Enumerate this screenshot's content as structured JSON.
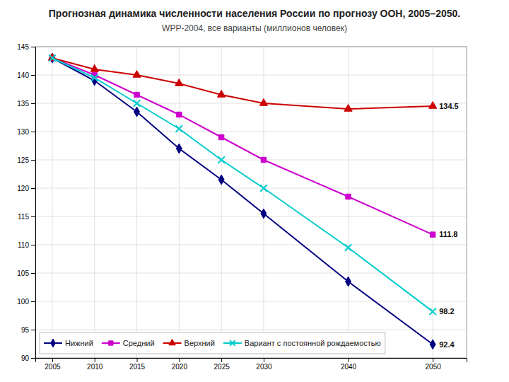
{
  "chart_data": {
    "type": "line",
    "title": "Прогнозная динамика численности населения России по прогнозу ООН, 2005–2050.",
    "subtitle": "WPP-2004, все варианты (миллионов человек)",
    "x": [
      2005,
      2010,
      2015,
      2020,
      2025,
      2030,
      2040,
      2050
    ],
    "series": [
      {
        "name": "Нижний",
        "color": "#000080",
        "marker": "diamond",
        "values": [
          143.0,
          139.0,
          133.5,
          127.0,
          121.5,
          115.5,
          103.5,
          92.4
        ]
      },
      {
        "name": "Средний",
        "color": "#CC00CC",
        "marker": "square",
        "values": [
          143.0,
          140.0,
          136.5,
          133.0,
          129.0,
          125.0,
          118.5,
          111.8
        ]
      },
      {
        "name": "Верхний",
        "color": "#CC0000",
        "marker": "triangle",
        "values": [
          143.0,
          141.0,
          140.0,
          138.5,
          136.5,
          135.0,
          134.0,
          134.5
        ]
      },
      {
        "name": "Вариант с постоянной рождаемостью",
        "color": "#00CCCC",
        "marker": "x",
        "values": [
          143.0,
          139.5,
          135.0,
          130.5,
          125.0,
          120.0,
          109.5,
          98.2
        ]
      }
    ],
    "annotations": [
      {
        "text": "134.5",
        "x": 2050,
        "y": 134.5
      },
      {
        "text": "111.8",
        "x": 2050,
        "y": 111.8
      },
      {
        "text": "98.2",
        "x": 2050,
        "y": 98.2
      },
      {
        "text": "92.4",
        "x": 2050,
        "y": 92.4
      }
    ],
    "xlim": [
      2003,
      2054
    ],
    "xticks": [
      2005,
      2010,
      2015,
      2020,
      2025,
      2030,
      2040,
      2050
    ],
    "ylim": [
      90,
      145
    ],
    "yticks": [
      90,
      95,
      100,
      105,
      110,
      115,
      120,
      125,
      130,
      135,
      140,
      145
    ],
    "grid": true,
    "legend": "lower left"
  }
}
